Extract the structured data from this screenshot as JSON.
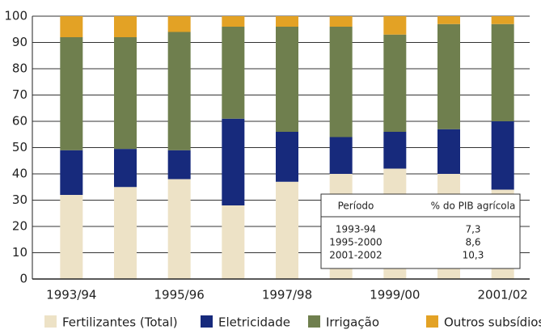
{
  "chart_data": {
    "type": "bar",
    "stacked": true,
    "categories": [
      "1993/94",
      null,
      "1995/96",
      null,
      "1997/98",
      null,
      "1999/00",
      null,
      "2001/02"
    ],
    "series": [
      {
        "name": "Fertilizantes (Total)",
        "color": "#ede2c6",
        "values": [
          32,
          35,
          38,
          28,
          37,
          40,
          42,
          40,
          34
        ]
      },
      {
        "name": "Eletricidade",
        "color": "#172a7c",
        "values": [
          17,
          14.5,
          11,
          33,
          19,
          14,
          14,
          17,
          26
        ]
      },
      {
        "name": "Irrigação",
        "color": "#6f7f4e",
        "values": [
          43,
          42.5,
          45,
          35,
          40,
          42,
          37,
          40,
          37
        ]
      },
      {
        "name": "Outros subsídios",
        "color": "#e3a225",
        "values": [
          8,
          8,
          6,
          4,
          4,
          4,
          7,
          3,
          3
        ]
      }
    ],
    "ylim": [
      0,
      100
    ],
    "yticks": [
      0,
      10,
      20,
      30,
      40,
      50,
      60,
      70,
      80,
      90,
      100
    ],
    "grid": true,
    "legend": "bottom"
  },
  "table": {
    "header": [
      "Período",
      "% do PIB agrícola"
    ],
    "rows": [
      [
        "1993-94",
        "7,3"
      ],
      [
        "1995-2000",
        "8,6"
      ],
      [
        "2001-2002",
        "10,3"
      ]
    ]
  }
}
